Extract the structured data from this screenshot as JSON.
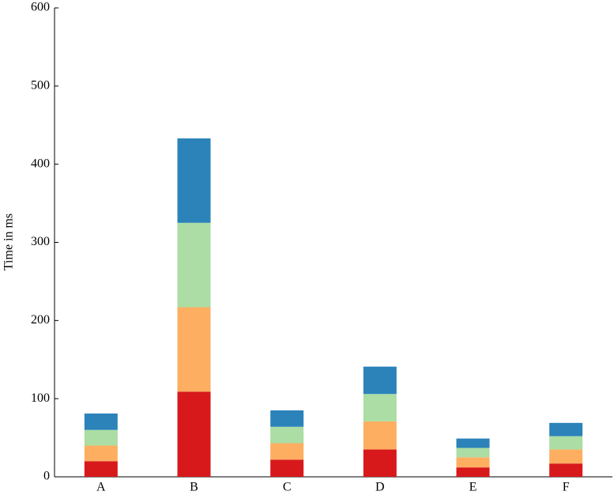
{
  "chart_data": {
    "type": "stacked-bar",
    "y_label": "Time in ms",
    "categories": [
      "A",
      "B",
      "C",
      "D",
      "E",
      "F"
    ],
    "series": [
      {
        "color": "#d7191c",
        "values": [
          20,
          109,
          22,
          35,
          12,
          17
        ]
      },
      {
        "color": "#fdae61",
        "values": [
          20,
          108,
          21,
          36,
          13,
          18
        ]
      },
      {
        "color": "#abdda4",
        "values": [
          20,
          108,
          21,
          35,
          12,
          17
        ]
      },
      {
        "color": "#2b83ba",
        "values": [
          21,
          108,
          21,
          35,
          12,
          17
        ]
      }
    ],
    "ylim": [
      0,
      600
    ],
    "yticks": [
      0,
      100,
      200,
      300,
      400,
      500,
      600
    ]
  }
}
